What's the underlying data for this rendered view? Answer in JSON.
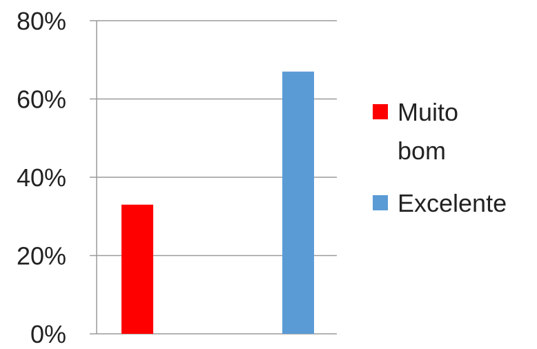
{
  "chart_data": {
    "type": "bar",
    "title": "",
    "xlabel": "",
    "ylabel": "",
    "ylim": [
      0,
      0.8
    ],
    "y_ticks": [
      "0%",
      "20%",
      "40%",
      "60%",
      "80%"
    ],
    "y_tick_values": [
      0,
      0.2,
      0.4,
      0.6,
      0.8
    ],
    "grid": true,
    "legend_position": "right",
    "series": [
      {
        "name": "Muito bom",
        "label_lines": [
          "Muito",
          "bom"
        ],
        "value": 0.33,
        "color": "#ff0000"
      },
      {
        "name": "Excelente",
        "label_lines": [
          "Excelente"
        ],
        "value": 0.67,
        "color": "#5b9bd5"
      }
    ]
  }
}
